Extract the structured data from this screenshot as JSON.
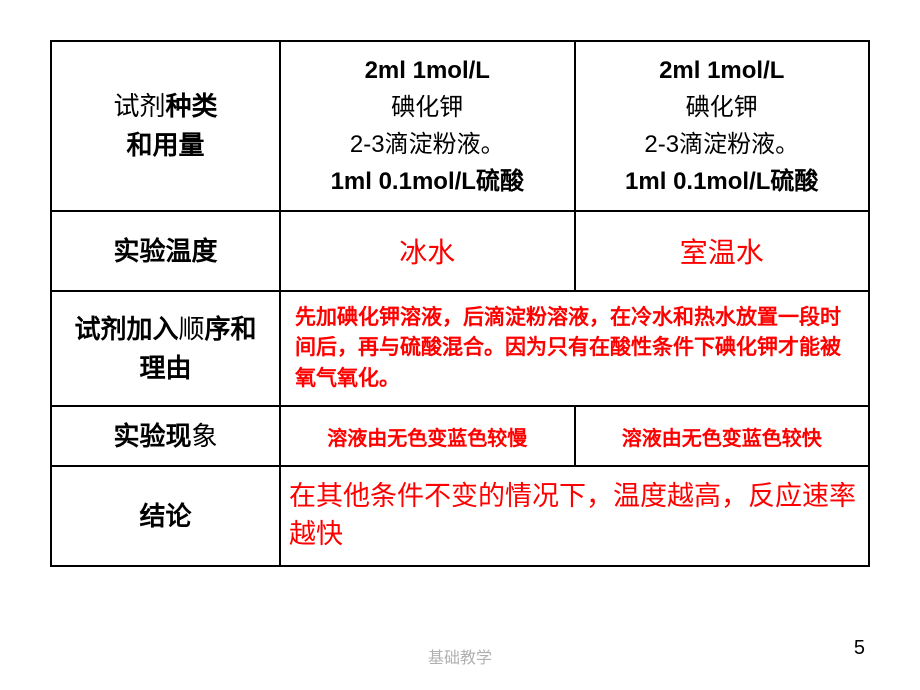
{
  "rows": {
    "reagent": {
      "label_part1": "试剂",
      "label_bold1": "种类",
      "label_part2": "和用量",
      "col1": {
        "line1": "2ml 1mol/L",
        "line2": "碘化钾",
        "line3": "2-3滴淀粉液。",
        "line4": "1ml 0.1mol/L硫酸"
      },
      "col2": {
        "line1": "2ml 1mol/L",
        "line2": "碘化钾",
        "line3": "2-3滴淀粉液。",
        "line4": "1ml 0.1mol/L硫酸"
      }
    },
    "temperature": {
      "label_part1": "实验",
      "label_bold1": "温度",
      "col1": "冰水",
      "col2": "室温水"
    },
    "order": {
      "label_part1": "试剂",
      "label_bold1": "加入",
      "label_part2": "顺",
      "label_bold2": "序和理由",
      "explanation": "先加碘化钾溶液，后滴淀粉溶液，在冷水和热水放置一段时间后，再与硫酸混合。因为只有在酸性条件下碘化钾才能被氧气氧化。"
    },
    "phenomenon": {
      "label_part1": "实验",
      "label_bold1": "现",
      "label_part2": "象",
      "col1": "溶液由无色变蓝色较慢",
      "col2": "溶液由无色变蓝色较快"
    },
    "conclusion": {
      "label": "结论",
      "text": "在其他条件不变的情况下，温度越高，反应速率越快"
    }
  },
  "footer": "基础教学",
  "page_number": "5"
}
